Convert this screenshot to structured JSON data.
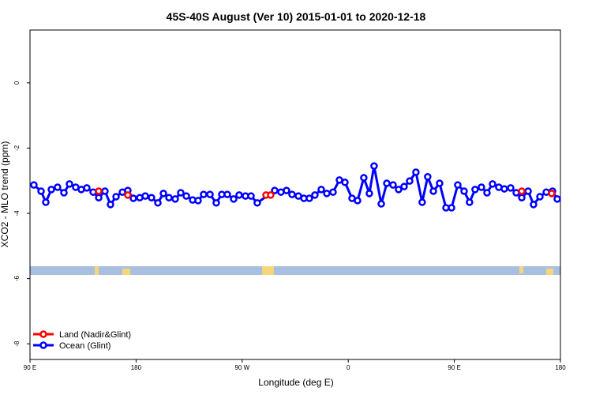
{
  "chart_data": {
    "type": "line",
    "title": "45S-40S August (Ver 10)   2015-01-01 to 2020-12-18",
    "x_label": "Longitude (deg E)",
    "y_label": "XCO2 - MLO trend (ppm)",
    "xlim": [
      90,
      540
    ],
    "xticks": [
      {
        "value": 90,
        "label": "90 E"
      },
      {
        "value": 180,
        "label": "180"
      },
      {
        "value": 270,
        "label": "90 W"
      },
      {
        "value": 360,
        "label": "0"
      },
      {
        "value": 450,
        "label": "90 E"
      },
      {
        "value": 540,
        "label": "180"
      }
    ],
    "ylim": [
      -8.48,
      1.62
    ],
    "yticks": [
      0,
      -2,
      -4,
      -6,
      -8
    ],
    "legend": "bottom-left",
    "series": [
      {
        "name": "Land (Nadir&Glint)",
        "color": "#ff0000",
        "x": [
          148.3,
          173.0,
          290.2,
          294.2,
          507.2,
          532.6
        ],
        "values": [
          -3.32,
          -3.44,
          -3.44,
          -3.44,
          -3.32,
          -3.39
        ]
      },
      {
        "name": "Ocean (Glint)",
        "color": "#0000ff",
        "x": [
          93.3,
          99.4,
          103.4,
          108.1,
          113.4,
          118.8,
          123.5,
          128.8,
          133.5,
          138.2,
          143.6,
          148.3,
          153.6,
          158.3,
          163.0,
          168.4,
          173.0,
          177.7,
          183.1,
          187.8,
          193.1,
          198.5,
          203.2,
          207.9,
          213.2,
          217.9,
          222.6,
          228.0,
          232.6,
          237.3,
          242.7,
          248.0,
          252.7,
          257.4,
          262.8,
          267.4,
          272.8,
          277.5,
          282.8,
          297.6,
          302.9,
          307.6,
          312.3,
          317.7,
          322.4,
          327.0,
          331.7,
          337.1,
          341.8,
          347.1,
          352.5,
          357.2,
          363.2,
          367.9,
          373.2,
          377.9,
          381.9,
          388.0,
          392.7,
          398.0,
          402.7,
          407.4,
          412.1,
          417.4,
          422.7,
          427.4,
          432.2,
          437.5,
          442.9,
          447.6,
          452.9,
          458.3,
          462.9,
          467.6,
          473.0,
          477.7,
          482.4,
          487.7,
          492.4,
          497.8,
          502.5,
          507.2,
          512.6,
          517.2,
          522.6,
          528.0,
          533.3,
          537.3
        ],
        "values": [
          -3.13,
          -3.32,
          -3.66,
          -3.27,
          -3.2,
          -3.37,
          -3.1,
          -3.2,
          -3.27,
          -3.22,
          -3.35,
          -3.52,
          -3.32,
          -3.73,
          -3.49,
          -3.35,
          -3.3,
          -3.54,
          -3.52,
          -3.47,
          -3.52,
          -3.68,
          -3.39,
          -3.52,
          -3.56,
          -3.37,
          -3.47,
          -3.59,
          -3.61,
          -3.42,
          -3.42,
          -3.68,
          -3.42,
          -3.42,
          -3.56,
          -3.44,
          -3.47,
          -3.47,
          -3.68,
          -3.3,
          -3.35,
          -3.3,
          -3.42,
          -3.47,
          -3.54,
          -3.54,
          -3.44,
          -3.27,
          -3.39,
          -3.35,
          -2.98,
          -3.05,
          -3.54,
          -3.61,
          -2.91,
          -3.39,
          -2.55,
          -3.71,
          -3.08,
          -3.13,
          -3.27,
          -3.18,
          -3.01,
          -2.74,
          -3.66,
          -2.88,
          -3.32,
          -3.08,
          -3.83,
          -3.83,
          -3.13,
          -3.32,
          -3.66,
          -3.27,
          -3.2,
          -3.37,
          -3.1,
          -3.2,
          -3.25,
          -3.22,
          -3.37,
          -3.52,
          -3.32,
          -3.73,
          -3.49,
          -3.35,
          -3.32,
          -3.56
        ]
      }
    ]
  }
}
